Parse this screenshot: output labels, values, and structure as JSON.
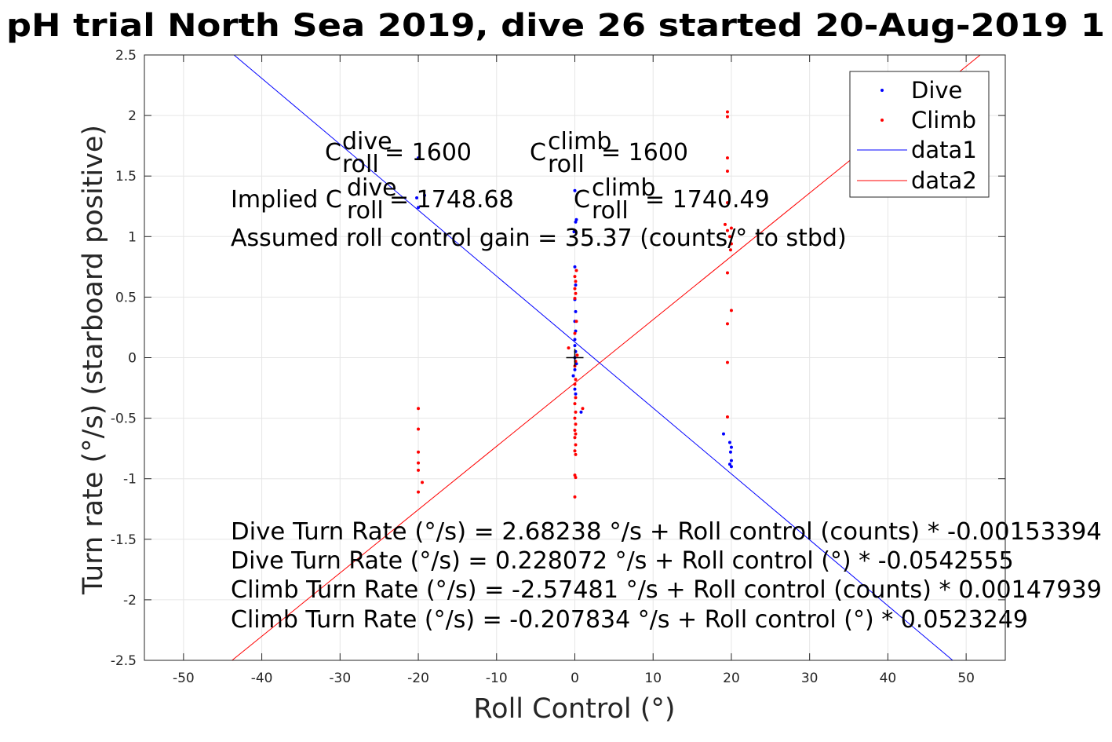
{
  "chart_data": {
    "type": "scatter",
    "title": "pH trial North Sea 2019, dive 26 started 20-Aug-2019 1",
    "xlabel": "Roll Control (°)",
    "ylabel": "Turn rate (°/s) (starboard positive)",
    "xlim": [
      -55,
      55
    ],
    "ylim": [
      -2.5,
      2.5
    ],
    "xticks": [
      -50,
      -40,
      -30,
      -20,
      -10,
      0,
      10,
      20,
      30,
      40,
      50
    ],
    "yticks": [
      -2.5,
      -2,
      -1.5,
      -1,
      -0.5,
      0,
      0.5,
      1,
      1.5,
      2,
      2.5
    ],
    "xticklabels": [
      "-50",
      "-40",
      "-30",
      "-20",
      "-10",
      "0",
      "10",
      "20",
      "30",
      "40",
      "50"
    ],
    "yticklabels": [
      "-2.5",
      "-2",
      "-1.5",
      "-1",
      "-0.5",
      "0",
      "0.5",
      "1",
      "1.5",
      "2",
      "2.5"
    ],
    "grid": true,
    "legend_position": "top-right",
    "colors": {
      "dive": "#0000ff",
      "climb": "#ff0000",
      "origin_marker": "#000000"
    },
    "legend": [
      "Dive",
      "Climb",
      "data1",
      "data2"
    ],
    "series": [
      {
        "name": "Dive",
        "kind": "points",
        "color": "#0000ff",
        "points": [
          [
            -20,
            1.65
          ],
          [
            -20.2,
            1.32
          ],
          [
            -20,
            1.24
          ],
          [
            -19.2,
            1.34
          ],
          [
            0,
            1.38
          ],
          [
            0.2,
            1.14
          ],
          [
            0.1,
            1.12
          ],
          [
            -0.1,
            1.04
          ],
          [
            0,
            0.75
          ],
          [
            0.1,
            0.6
          ],
          [
            0,
            0.48
          ],
          [
            0.1,
            0.38
          ],
          [
            0,
            0.3
          ],
          [
            0.1,
            0.22
          ],
          [
            0,
            0.15
          ],
          [
            0,
            0.1
          ],
          [
            0.1,
            0.05
          ],
          [
            0,
            0.0
          ],
          [
            0.2,
            -0.05
          ],
          [
            0,
            -0.1
          ],
          [
            -0.2,
            -0.15
          ],
          [
            0,
            -0.26
          ],
          [
            0.1,
            -0.3
          ],
          [
            0.8,
            -0.45
          ],
          [
            19,
            -0.63
          ],
          [
            19.8,
            -0.7
          ],
          [
            20,
            -0.74
          ],
          [
            19.9,
            -0.78
          ],
          [
            20,
            -0.85
          ],
          [
            19.8,
            -0.88
          ],
          [
            20,
            -0.9
          ]
        ]
      },
      {
        "name": "Climb",
        "kind": "points",
        "color": "#ff0000",
        "points": [
          [
            19.5,
            2.03
          ],
          [
            19.5,
            1.99
          ],
          [
            19.5,
            1.65
          ],
          [
            19.5,
            1.54
          ],
          [
            19.5,
            1.28
          ],
          [
            19.2,
            1.1
          ],
          [
            19.5,
            1.05
          ],
          [
            20,
            1.07
          ],
          [
            19.8,
            1.0
          ],
          [
            20,
            0.94
          ],
          [
            19.9,
            0.89
          ],
          [
            19.5,
            0.7
          ],
          [
            20,
            0.39
          ],
          [
            19.5,
            0.28
          ],
          [
            19.5,
            -0.04
          ],
          [
            19.5,
            -0.49
          ],
          [
            0.2,
            0.72
          ],
          [
            0,
            0.67
          ],
          [
            0.1,
            0.63
          ],
          [
            0,
            0.57
          ],
          [
            0.1,
            0.53
          ],
          [
            0,
            0.49
          ],
          [
            0.2,
            0.3
          ],
          [
            0,
            0.2
          ],
          [
            -0.8,
            0.08
          ],
          [
            0.3,
            0.02
          ],
          [
            0.1,
            -0.03
          ],
          [
            0,
            -0.07
          ],
          [
            0.1,
            -0.18
          ],
          [
            0,
            -0.22
          ],
          [
            0.1,
            -0.33
          ],
          [
            0,
            -0.38
          ],
          [
            0.1,
            -0.45
          ],
          [
            0,
            -0.5
          ],
          [
            0.1,
            -0.55
          ],
          [
            0,
            -0.6
          ],
          [
            0.1,
            -0.63
          ],
          [
            0,
            -0.66
          ],
          [
            0.1,
            -0.72
          ],
          [
            0,
            -0.77
          ],
          [
            0.1,
            -0.8
          ],
          [
            0,
            -0.97
          ],
          [
            0.1,
            -0.99
          ],
          [
            0,
            -1.15
          ],
          [
            1.0,
            -0.42
          ],
          [
            -20,
            -0.42
          ],
          [
            -20,
            -0.59
          ],
          [
            -20,
            -0.78
          ],
          [
            -20,
            -0.87
          ],
          [
            -20,
            -0.93
          ],
          [
            -19.5,
            -1.03
          ],
          [
            -20,
            -1.11
          ]
        ]
      },
      {
        "name": "data1",
        "kind": "line",
        "color": "#0000ff",
        "points": [
          [
            -43.55,
            2.5
          ],
          [
            48.28,
            -2.5
          ]
        ]
      },
      {
        "name": "data2",
        "kind": "line",
        "color": "#ff0000",
        "points": [
          [
            -43.8,
            -2.5
          ],
          [
            51.8,
            2.5
          ]
        ]
      }
    ],
    "origin_marker": {
      "x": 0,
      "y": 0
    },
    "annotations": {
      "dive_label_base": "C",
      "dive_label_sup": "dive",
      "dive_label_sub": "roll",
      "dive_label_value": " = 1600",
      "climb_label_base": "C",
      "climb_label_sup": "climb",
      "climb_label_sub": "roll",
      "climb_label_value": " = 1600",
      "implied_prefix": "Implied C",
      "implied_dive_sup": "dive",
      "implied_dive_sub": "roll",
      "implied_dive_value": " = 1748.68",
      "implied_climb_base": "C",
      "implied_climb_sup": "climb",
      "implied_climb_sub": "roll",
      "implied_climb_value": " = 1740.49",
      "gain_text": "Assumed roll control gain = 35.37 (counts/° to stbd)",
      "eq1": "Dive Turn Rate (°/s) = 2.68238 °/s + Roll control (counts) * -0.00153394",
      "eq2": "Dive Turn Rate (°/s) = 0.228072 °/s + Roll control (°) * -0.0542555",
      "eq3": "Climb Turn Rate (°/s) = -2.57481 °/s + Roll control (counts) * 0.00147939",
      "eq4": "Climb Turn Rate (°/s) = -0.207834 °/s + Roll control (°) * 0.0523249"
    }
  }
}
